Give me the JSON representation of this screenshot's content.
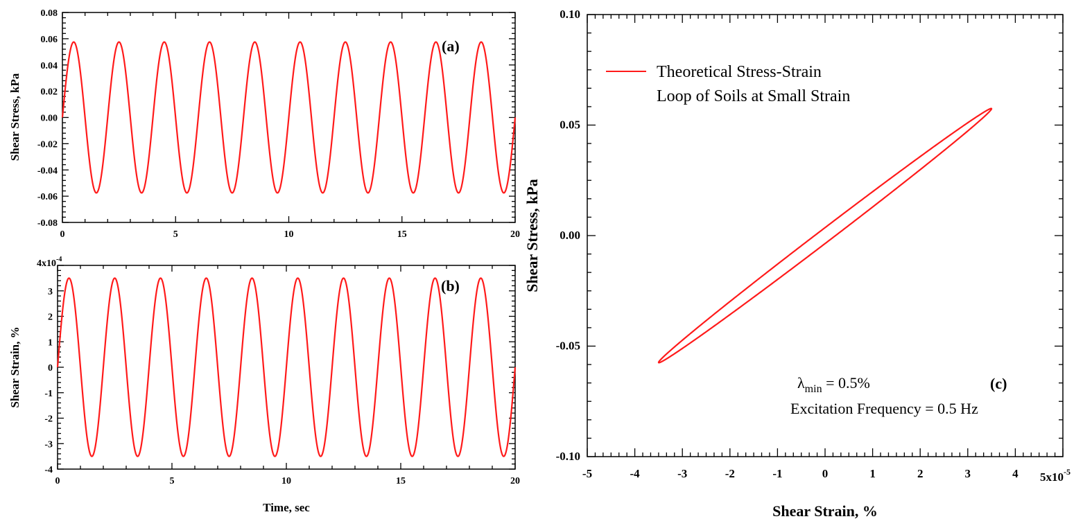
{
  "colors": {
    "series": "#ff1a1a",
    "axis": "#000000"
  },
  "chart_data": [
    {
      "id": "a",
      "type": "line",
      "panel_label": "(a)",
      "xlabel": "",
      "ylabel": "Shear Stress, kPa",
      "xlim": [
        0,
        20
      ],
      "ylim": [
        -0.08,
        0.08
      ],
      "x_ticks": [
        "0",
        "5",
        "10",
        "15",
        "20"
      ],
      "y_ticks": [
        "-0.08",
        "-0.06",
        "-0.04",
        "-0.02",
        "0.00",
        "0.02",
        "0.04",
        "0.06",
        "0.08"
      ],
      "series": [
        {
          "name": "Shear Stress",
          "function": "sine",
          "amplitude": 0.0575,
          "frequency_hz": 0.5,
          "phase_deg": 0,
          "x_start": 0,
          "x_end": 20
        }
      ]
    },
    {
      "id": "b",
      "type": "line",
      "panel_label": "(b)",
      "xlabel": "Time, sec",
      "ylabel": "Shear Strain, %",
      "xlim": [
        0,
        20
      ],
      "ylim": [
        -4,
        4
      ],
      "y_scale_label": "4x10",
      "y_scale_exp": "-4",
      "x_ticks": [
        "0",
        "5",
        "10",
        "15",
        "20"
      ],
      "y_ticks": [
        "-4",
        "-3",
        "-2",
        "-1",
        "0",
        "1",
        "2",
        "3"
      ],
      "series": [
        {
          "name": "Shear Strain",
          "function": "sine",
          "amplitude": 3.5,
          "frequency_hz": 0.5,
          "phase_deg": 0,
          "x_start": 0,
          "x_end": 20
        }
      ]
    },
    {
      "id": "c",
      "type": "line",
      "panel_label": "(c)",
      "xlabel": "Shear Strain, %",
      "ylabel": "Shear Stress, kPa",
      "xlim": [
        -5,
        5
      ],
      "ylim": [
        -0.1,
        0.1
      ],
      "x_scale_label": "5x10",
      "x_scale_exp": "-5",
      "x_ticks": [
        "-5",
        "-4",
        "-3",
        "-2",
        "-1",
        "0",
        "1",
        "2",
        "3",
        "4"
      ],
      "y_ticks": [
        "-0.10",
        "-0.05",
        "0.00",
        "0.05",
        "0.10"
      ],
      "legend": {
        "line1": "Theoretical Stress-Strain",
        "line2": "Loop of Soils at Small Strain"
      },
      "annotation": {
        "lambda_symbol": "λ",
        "lambda_sub": "min",
        "lambda_value": " = 0.5%",
        "excitation": "Excitation Frequency = 0.5 Hz"
      },
      "series": [
        {
          "name": "Theoretical Stress-Strain Loop of Soils at Small Strain",
          "function": "ellipse",
          "strain_amplitude": 3.5,
          "stress_amplitude": 0.0575,
          "phase_lag_deg": 3.6
        }
      ]
    }
  ]
}
